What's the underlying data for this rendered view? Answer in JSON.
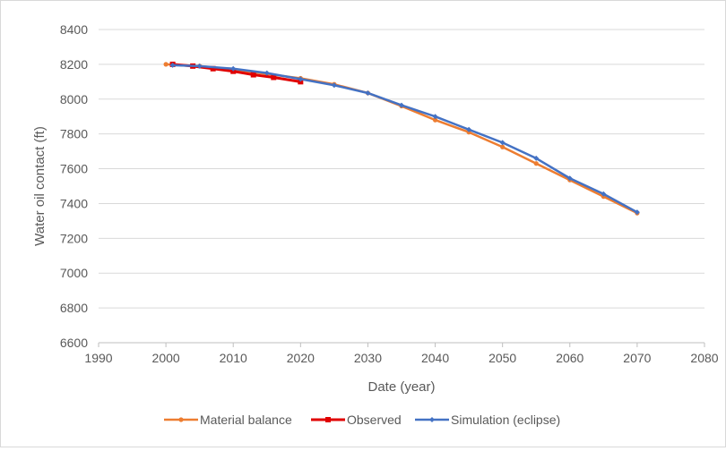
{
  "chart_data": {
    "type": "line",
    "xlabel": "Date (year)",
    "ylabel": "Water oil contact (ft)",
    "xlim": [
      1990,
      2080
    ],
    "ylim": [
      6600,
      8400
    ],
    "x_ticks": [
      "1990",
      "2000",
      "2010",
      "2020",
      "2030",
      "2040",
      "2050",
      "2060",
      "2070",
      "2080"
    ],
    "y_ticks": [
      "6600",
      "6800",
      "7000",
      "7200",
      "7400",
      "7600",
      "7800",
      "8000",
      "8200",
      "8400"
    ],
    "grid": "horizontal",
    "legend_position": "bottom",
    "series": [
      {
        "name": "Material balance",
        "color": "#ed7d31",
        "marker": "circle",
        "x": [
          2000,
          2005,
          2010,
          2015,
          2020,
          2025,
          2030,
          2035,
          2040,
          2045,
          2050,
          2055,
          2060,
          2065,
          2070
        ],
        "y": [
          8200,
          8190,
          8170,
          8145,
          8120,
          8085,
          8035,
          7960,
          7880,
          7810,
          7725,
          7630,
          7535,
          7440,
          7345
        ]
      },
      {
        "name": "Observed",
        "color": "#e00000",
        "marker": "square",
        "x": [
          2001,
          2004,
          2007,
          2010,
          2013,
          2016,
          2020
        ],
        "y": [
          8200,
          8190,
          8175,
          8160,
          8140,
          8125,
          8100
        ]
      },
      {
        "name": "Simulation (eclipse)",
        "color": "#4472c4",
        "marker": "diamond",
        "x": [
          2001,
          2005,
          2010,
          2015,
          2020,
          2025,
          2030,
          2035,
          2040,
          2045,
          2050,
          2055,
          2060,
          2065,
          2070
        ],
        "y": [
          8195,
          8190,
          8175,
          8150,
          8115,
          8080,
          8035,
          7965,
          7900,
          7825,
          7750,
          7660,
          7545,
          7455,
          7350
        ]
      }
    ]
  }
}
